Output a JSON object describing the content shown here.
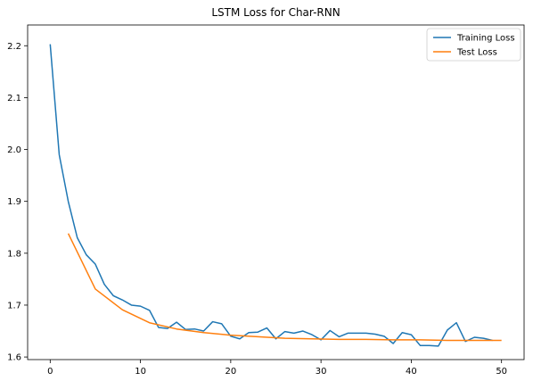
{
  "chart_data": {
    "type": "line",
    "title": "LSTM Loss for Char-RNN",
    "xlabel": "",
    "ylabel": "",
    "xlim": [
      -2.5,
      52.5
    ],
    "ylim": [
      1.595,
      2.24
    ],
    "xticks": [
      0,
      10,
      20,
      30,
      40,
      50
    ],
    "yticks": [
      1.6,
      1.7,
      1.8,
      1.9,
      2.0,
      2.1,
      2.2
    ],
    "grid": false,
    "legend_position": "top-right",
    "series": [
      {
        "name": "Training Loss",
        "color": "#1f77b4",
        "x": [
          0,
          1,
          2,
          3,
          4,
          5,
          6,
          7,
          8,
          9,
          10,
          11,
          12,
          13,
          14,
          15,
          16,
          17,
          18,
          19,
          20,
          21,
          22,
          23,
          24,
          25,
          26,
          27,
          28,
          29,
          30,
          31,
          32,
          33,
          34,
          35,
          36,
          37,
          38,
          39,
          40,
          41,
          42,
          43,
          44,
          45,
          46,
          47,
          48,
          49
        ],
        "y": [
          2.203,
          1.99,
          1.9,
          1.83,
          1.797,
          1.779,
          1.74,
          1.718,
          1.71,
          1.7,
          1.698,
          1.69,
          1.657,
          1.655,
          1.667,
          1.653,
          1.654,
          1.65,
          1.668,
          1.664,
          1.64,
          1.635,
          1.647,
          1.648,
          1.656,
          1.635,
          1.649,
          1.646,
          1.65,
          1.643,
          1.633,
          1.651,
          1.639,
          1.646,
          1.646,
          1.646,
          1.644,
          1.64,
          1.626,
          1.647,
          1.643,
          1.622,
          1.622,
          1.621,
          1.652,
          1.666,
          1.63,
          1.638,
          1.636,
          1.632
        ]
      },
      {
        "name": "Test Loss",
        "color": "#ff7f0e",
        "x": [
          2,
          5,
          8,
          11,
          14,
          17,
          20,
          23,
          26,
          29,
          32,
          35,
          38,
          41,
          44,
          47,
          50
        ],
        "y": [
          1.838,
          1.731,
          1.691,
          1.666,
          1.654,
          1.647,
          1.642,
          1.639,
          1.636,
          1.635,
          1.634,
          1.634,
          1.633,
          1.633,
          1.632,
          1.632,
          1.632
        ]
      }
    ]
  }
}
